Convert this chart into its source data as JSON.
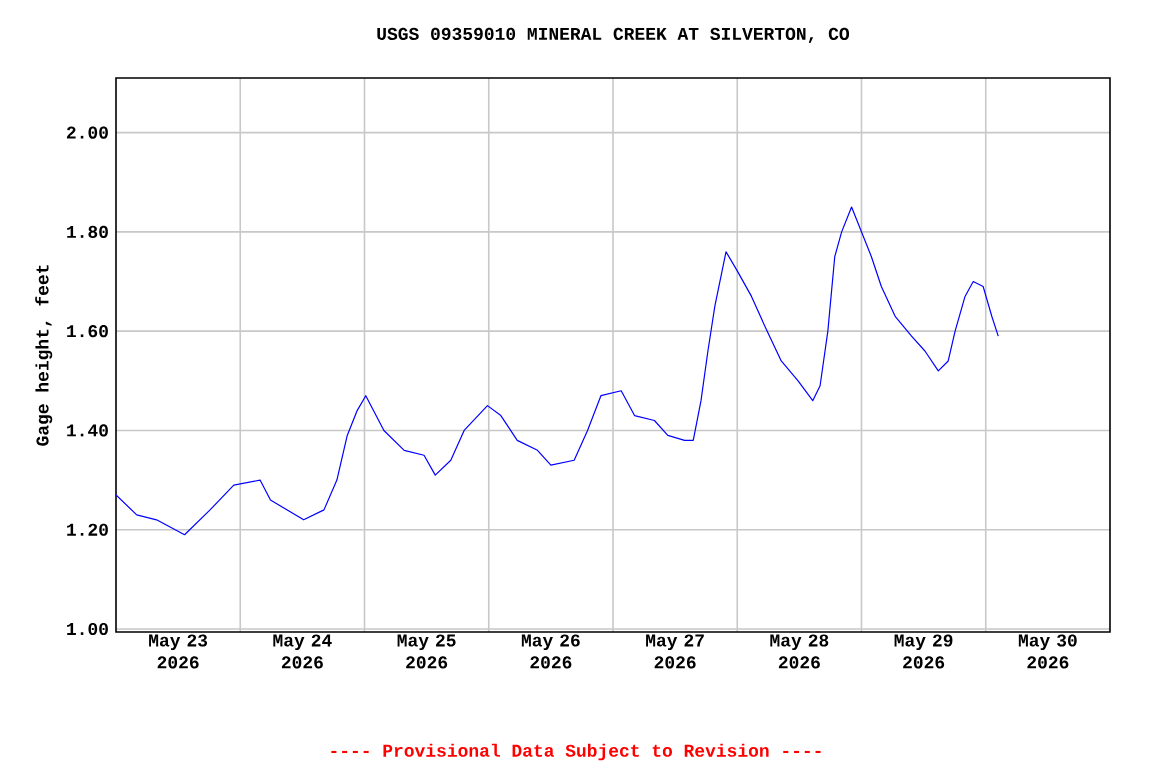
{
  "chart_data": {
    "type": "line",
    "title": "USGS 09359010 MINERAL CREEK AT SILVERTON, CO",
    "ylabel": "Gage height, feet",
    "annotations": [
      "---- Provisional Data Subject to Revision ----"
    ],
    "grid": true,
    "xlim": [
      "2026-05-23T00:00",
      "2026-05-31T00:00"
    ],
    "xticks": [
      {
        "value": "2026-05-23T12:00",
        "label": "May 23 2026"
      },
      {
        "value": "2026-05-24T00:00",
        "label": null
      },
      {
        "value": "2026-05-24T12:00",
        "label": "May 24 2026"
      },
      {
        "value": "2026-05-25T00:00",
        "label": null
      },
      {
        "value": "2026-05-25T12:00",
        "label": "May 25 2026"
      },
      {
        "value": "2026-05-26T00:00",
        "label": null
      },
      {
        "value": "2026-05-26T12:00",
        "label": "May 26 2026"
      },
      {
        "value": "2026-05-27T00:00",
        "label": null
      },
      {
        "value": "2026-05-27T12:00",
        "label": "May 27 2026"
      },
      {
        "value": "2026-05-28T00:00",
        "label": null
      },
      {
        "value": "2026-05-28T12:00",
        "label": "May 28 2026"
      },
      {
        "value": "2026-05-29T00:00",
        "label": null
      },
      {
        "value": "2026-05-29T12:00",
        "label": "May 29 2026"
      },
      {
        "value": "2026-05-30T00:00",
        "label": null
      },
      {
        "value": "2026-05-30T12:00",
        "label": "May 30 2026"
      }
    ],
    "ylim": [
      0.994,
      2.11
    ],
    "yticks": [
      {
        "value": 1.0,
        "label": "1.00"
      },
      {
        "value": 1.2,
        "label": "1.20"
      },
      {
        "value": 1.4,
        "label": "1.40"
      },
      {
        "value": 1.6,
        "label": "1.60"
      },
      {
        "value": 1.8,
        "label": "1.80"
      },
      {
        "value": 2.0,
        "label": "2.00"
      }
    ],
    "series": [
      {
        "color": "#0000ff",
        "x": [
          "2026-05-23T00:00",
          "2026-05-23T04:00",
          "2026-05-23T07:50",
          "2026-05-23T13:15",
          "2026-05-23T18:10",
          "2026-05-23T22:45",
          "2026-05-24T03:50",
          "2026-05-24T05:50",
          "2026-05-24T12:15",
          "2026-05-24T16:10",
          "2026-05-24T18:40",
          "2026-05-24T20:40",
          "2026-05-24T22:35",
          "2026-05-25T00:15",
          "2026-05-25T03:45",
          "2026-05-25T07:40",
          "2026-05-25T11:30",
          "2026-05-25T13:40",
          "2026-05-25T16:40",
          "2026-05-25T19:15",
          "2026-05-25T23:45",
          "2026-05-26T02:20",
          "2026-05-26T05:30",
          "2026-05-26T09:25",
          "2026-05-26T12:00",
          "2026-05-26T16:30",
          "2026-05-26T19:05",
          "2026-05-26T21:40",
          "2026-05-27T01:35",
          "2026-05-27T04:10",
          "2026-05-27T08:00",
          "2026-05-27T10:35",
          "2026-05-27T13:50",
          "2026-05-27T15:30",
          "2026-05-27T17:00",
          "2026-05-27T18:20",
          "2026-05-27T19:40",
          "2026-05-27T21:50",
          "2026-05-28T00:05",
          "2026-05-28T02:45",
          "2026-05-28T05:20",
          "2026-05-28T08:30",
          "2026-05-28T11:45",
          "2026-05-28T14:35",
          "2026-05-28T16:00",
          "2026-05-28T17:30",
          "2026-05-28T18:50",
          "2026-05-28T20:10",
          "2026-05-28T22:05",
          "2026-05-29T00:00",
          "2026-05-29T01:55",
          "2026-05-29T03:50",
          "2026-05-29T06:30",
          "2026-05-29T09:40",
          "2026-05-29T12:15",
          "2026-05-29T14:50",
          "2026-05-29T16:45",
          "2026-05-29T18:05",
          "2026-05-29T20:00",
          "2026-05-29T21:35",
          "2026-05-29T23:30",
          "2026-05-30T01:10",
          "2026-05-30T02:25"
        ],
        "values": [
          1.27,
          1.23,
          1.22,
          1.19,
          1.24,
          1.29,
          1.3,
          1.26,
          1.22,
          1.24,
          1.3,
          1.39,
          1.44,
          1.47,
          1.4,
          1.36,
          1.35,
          1.31,
          1.34,
          1.4,
          1.45,
          1.43,
          1.38,
          1.36,
          1.33,
          1.34,
          1.4,
          1.47,
          1.48,
          1.43,
          1.42,
          1.39,
          1.38,
          1.38,
          1.46,
          1.56,
          1.65,
          1.76,
          1.72,
          1.67,
          1.61,
          1.54,
          1.5,
          1.46,
          1.49,
          1.6,
          1.75,
          1.8,
          1.85,
          1.8,
          1.75,
          1.69,
          1.63,
          1.59,
          1.56,
          1.52,
          1.54,
          1.6,
          1.67,
          1.7,
          1.69,
          1.63,
          1.59
        ]
      }
    ]
  }
}
